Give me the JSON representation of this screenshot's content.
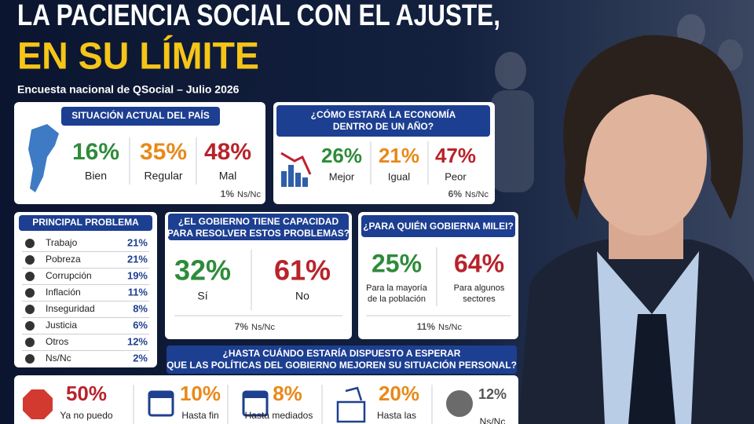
{
  "header": {
    "title_line1": "LA PACIENCIA SOCIAL CON EL AJUSTE,",
    "title_line2": "EN SU LÍMITE",
    "subtitle": "Encuesta nacional de QSocial – Julio 2026"
  },
  "situacion": {
    "title": "SITUACIÓN ACTUAL DEL PAÍS",
    "items": [
      {
        "value": "16%",
        "label": "Bien",
        "color": "#2e8b3a"
      },
      {
        "value": "35%",
        "label": "Regular",
        "color": "#e8891a"
      },
      {
        "value": "48%",
        "label": "Mal",
        "color": "#b8232b"
      }
    ],
    "ns_nc": {
      "value": "1%",
      "label": "Ns/Nc"
    }
  },
  "economia": {
    "title": [
      "¿CÓMO ESTARÁ LA ECONOMÍA",
      "DENTRO DE UN AÑO?"
    ],
    "items": [
      {
        "value": "26%",
        "label": "Mejor",
        "color": "#2e8b3a"
      },
      {
        "value": "21%",
        "label": "Igual",
        "color": "#e8891a"
      },
      {
        "value": "47%",
        "label": "Peor",
        "color": "#b8232b"
      }
    ],
    "ns_nc": {
      "value": "6%",
      "label": "Ns/Nc"
    }
  },
  "problema": {
    "title": "PRINCIPAL PROBLEMA",
    "rows": [
      {
        "label": "Trabajo",
        "value": "21%"
      },
      {
        "label": "Pobreza",
        "value": "21%"
      },
      {
        "label": "Corrupción",
        "value": "19%"
      },
      {
        "label": "Inflación",
        "value": "11%"
      },
      {
        "label": "Inseguridad",
        "value": "8%"
      },
      {
        "label": "Justicia",
        "value": "6%"
      },
      {
        "label": "Otros",
        "value": "12%"
      },
      {
        "label": "Ns/Nc",
        "value": "2%"
      }
    ]
  },
  "capacidad": {
    "title": [
      "¿EL GOBIERNO TIENE CAPACIDAD",
      "PARA RESOLVER ESTOS PROBLEMAS?"
    ],
    "items": [
      {
        "value": "32%",
        "label": [
          "Sí"
        ],
        "color": "#2e8b3a"
      },
      {
        "value": "61%",
        "label": [
          "No"
        ],
        "color": "#b8232b"
      }
    ],
    "ns_nc": {
      "value": "7%",
      "label": "Ns/Nc"
    }
  },
  "gobierna": {
    "title": "¿PARA QUIÉN GOBIERNA MILEI?",
    "items": [
      {
        "value": "25%",
        "label": [
          "Para la mayoría",
          "de la población"
        ],
        "color": "#2e8b3a"
      },
      {
        "value": "64%",
        "label": [
          "Para algunos",
          "sectores"
        ],
        "color": "#b8232b"
      }
    ],
    "ns_nc": {
      "value": "11%",
      "label": "Ns/Nc"
    }
  },
  "espera": {
    "title": [
      "¿HASTA CUÁNDO ESTARÍA DISPUESTO A ESPERAR",
      "QUE LAS POLÍTICAS DEL GOBIERNO MEJOREN SU SITUACIÓN PERSONAL?"
    ],
    "items": [
      {
        "value": "50%",
        "label": "Ya no puedo",
        "color": "#b8232b"
      },
      {
        "value": "10%",
        "label": "Hasta fin",
        "color": "#e8891a"
      },
      {
        "value": "8%",
        "label": "Hasta mediados",
        "color": "#e8891a"
      },
      {
        "value": "20%",
        "label": "Hasta las",
        "color": "#e8891a"
      },
      {
        "value": "12%",
        "label": "Ns/Nc",
        "color": "#555555"
      }
    ]
  }
}
